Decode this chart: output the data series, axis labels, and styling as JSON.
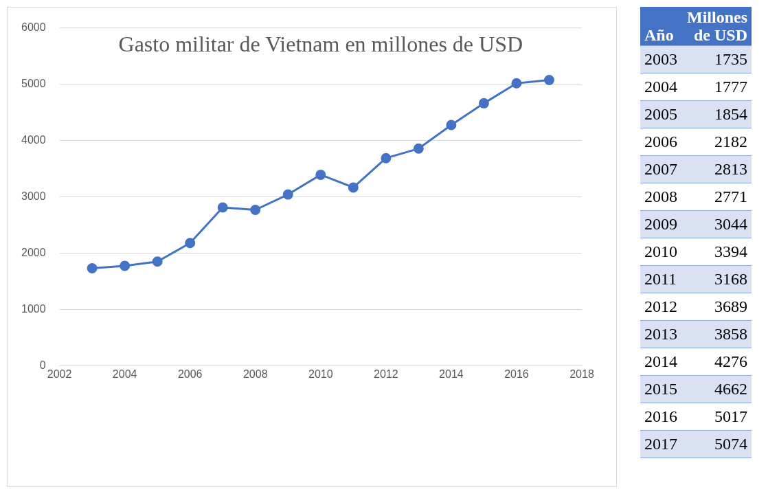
{
  "chart_data": [
    {
      "type": "line",
      "title": "Gasto militar de Vietnam en millones de USD",
      "x": [
        2003,
        2004,
        2005,
        2006,
        2007,
        2008,
        2009,
        2010,
        2011,
        2012,
        2013,
        2014,
        2015,
        2016,
        2017
      ],
      "series": [
        {
          "color": "#4472c4",
          "values": [
            1735,
            1777,
            1854,
            2182,
            2813,
            2771,
            3044,
            3394,
            3168,
            3689,
            3858,
            4276,
            4662,
            5017,
            5074
          ]
        }
      ],
      "xlim": [
        2002,
        2018
      ],
      "xticks": [
        2002,
        2004,
        2006,
        2008,
        2010,
        2012,
        2014,
        2016,
        2018
      ],
      "ylim": [
        0,
        6000
      ],
      "yticks": [
        0,
        1000,
        2000,
        3000,
        4000,
        5000,
        6000
      ],
      "grid": "y",
      "legend": false,
      "marker": "circle",
      "line_style": "solid"
    },
    {
      "type": "heatmap",
      "ylabel": "Año",
      "categories": [
        "Millones de USD"
      ],
      "data_labels": true,
      "y_categories": [
        "2003",
        "2004",
        "2005",
        "2006",
        "2007",
        "2008",
        "2009",
        "2010",
        "2011",
        "2012",
        "2013",
        "2014",
        "2015",
        "2016",
        "2017"
      ],
      "cells": [
        [
          1735
        ],
        [
          1777
        ],
        [
          1854
        ],
        [
          2182
        ],
        [
          2813
        ],
        [
          2771
        ],
        [
          3044
        ],
        [
          3394
        ],
        [
          3168
        ],
        [
          3689
        ],
        [
          3858
        ],
        [
          4276
        ],
        [
          4662
        ],
        [
          5017
        ],
        [
          5074
        ]
      ]
    }
  ]
}
